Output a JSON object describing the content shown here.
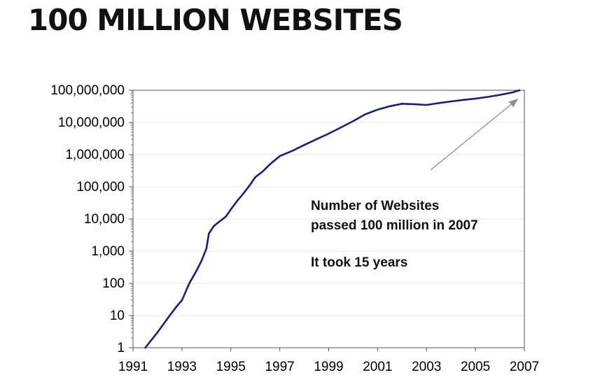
{
  "title": "100 MILLION WEBSITES",
  "chart_data": {
    "type": "line",
    "title": "",
    "xlabel": "",
    "ylabel": "",
    "y_scale": "log",
    "xlim": [
      1991,
      2007
    ],
    "ylim": [
      1,
      100000000
    ],
    "grid": true,
    "legend": false,
    "x_ticks": [
      1991,
      1993,
      1995,
      1997,
      1999,
      2001,
      2003,
      2005,
      2007
    ],
    "x_tick_labels": [
      "1991",
      "1993",
      "1995",
      "1997",
      "1999",
      "2001",
      "2003",
      "2005",
      "2007"
    ],
    "y_ticks": [
      1,
      10,
      100,
      1000,
      10000,
      100000,
      1000000,
      10000000,
      100000000
    ],
    "y_tick_labels": [
      "1",
      "10",
      "100",
      "1,000",
      "10,000",
      "100,000",
      "1,000,000",
      "10,000,000",
      "100,000,000"
    ],
    "series": [
      {
        "color": "#1a1a8c",
        "x": [
          1991.5,
          1992.0,
          1992.5,
          1992.8,
          1993.0,
          1993.3,
          1993.6,
          1993.8,
          1994.0,
          1994.1,
          1994.3,
          1994.5,
          1994.8,
          1995.0,
          1995.3,
          1995.5,
          1995.8,
          1996.0,
          1996.3,
          1996.6,
          1997.0,
          1997.5,
          1998.0,
          1998.5,
          1999.0,
          1999.5,
          2000.0,
          2000.5,
          2001.0,
          2001.5,
          2002.0,
          2002.5,
          2003.0,
          2003.5,
          2004.0,
          2004.5,
          2005.0,
          2005.5,
          2006.0,
          2006.5,
          2006.8
        ],
        "y": [
          1,
          3,
          10,
          20,
          30,
          100,
          250,
          500,
          1200,
          3500,
          6000,
          8000,
          12000,
          20000,
          40000,
          60000,
          120000,
          200000,
          300000,
          500000,
          900000,
          1300000,
          2000000,
          3000000,
          4500000,
          7000000,
          11000000,
          18000000,
          25000000,
          32000000,
          38000000,
          37000000,
          35000000,
          40000000,
          45000000,
          50000000,
          55000000,
          62000000,
          72000000,
          85000000,
          100000000
        ]
      }
    ],
    "annotations": [
      "Number of Websites",
      "passed 100 million in 2007",
      "It took 15 years"
    ]
  }
}
